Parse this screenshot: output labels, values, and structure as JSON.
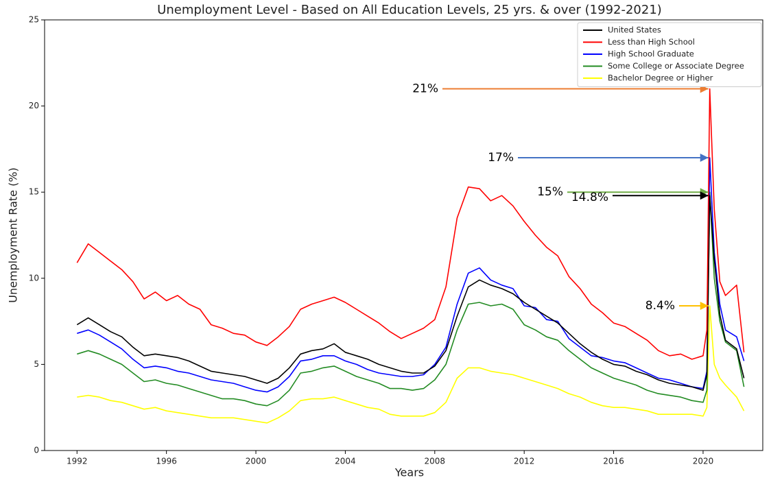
{
  "chart_data": {
    "type": "line",
    "title": "Unemployment Level - Based on All Education Levels, 25 yrs. & over (1992-2021)",
    "xlabel": "Years",
    "ylabel": "Unemployment Rate (%)",
    "x": [
      1992,
      1992.5,
      1993,
      1993.5,
      1994,
      1994.5,
      1995,
      1995.5,
      1996,
      1996.5,
      1997,
      1997.5,
      1998,
      1998.5,
      1999,
      1999.5,
      2000,
      2000.5,
      2001,
      2001.5,
      2002,
      2002.5,
      2003,
      2003.5,
      2004,
      2004.5,
      2005,
      2005.5,
      2006,
      2006.5,
      2007,
      2007.5,
      2008,
      2008.5,
      2009,
      2009.5,
      2010,
      2010.5,
      2011,
      2011.5,
      2012,
      2012.5,
      2013,
      2013.5,
      2014,
      2014.5,
      2015,
      2015.5,
      2016,
      2016.5,
      2017,
      2017.5,
      2018,
      2018.5,
      2019,
      2019.5,
      2020,
      2020.17,
      2020.3,
      2020.5,
      2020.75,
      2021,
      2021.5,
      2021.83
    ],
    "series": [
      {
        "name": "United States",
        "color": "#000000",
        "values": [
          7.3,
          7.7,
          7.3,
          6.9,
          6.6,
          6.0,
          5.5,
          5.6,
          5.5,
          5.4,
          5.2,
          4.9,
          4.6,
          4.5,
          4.4,
          4.3,
          4.1,
          3.9,
          4.2,
          4.8,
          5.6,
          5.8,
          5.9,
          6.2,
          5.7,
          5.5,
          5.3,
          5.0,
          4.8,
          4.6,
          4.5,
          4.5,
          4.9,
          5.8,
          7.8,
          9.5,
          9.9,
          9.6,
          9.4,
          9.1,
          8.6,
          8.2,
          7.8,
          7.4,
          6.8,
          6.2,
          5.7,
          5.3,
          5.0,
          4.9,
          4.6,
          4.4,
          4.1,
          3.9,
          3.8,
          3.7,
          3.5,
          4.4,
          14.8,
          11.1,
          7.9,
          6.4,
          5.9,
          4.2
        ]
      },
      {
        "name": "Less than High School",
        "color": "#ff0000",
        "values": [
          10.9,
          12.0,
          11.5,
          11.0,
          10.5,
          9.8,
          8.8,
          9.2,
          8.7,
          9.0,
          8.5,
          8.2,
          7.3,
          7.1,
          6.8,
          6.7,
          6.3,
          6.1,
          6.6,
          7.2,
          8.2,
          8.5,
          8.7,
          8.9,
          8.6,
          8.2,
          7.8,
          7.4,
          6.9,
          6.5,
          6.8,
          7.1,
          7.6,
          9.5,
          13.5,
          15.3,
          15.2,
          14.5,
          14.8,
          14.2,
          13.3,
          12.5,
          11.8,
          11.3,
          10.1,
          9.4,
          8.5,
          8.0,
          7.4,
          7.2,
          6.8,
          6.4,
          5.8,
          5.5,
          5.6,
          5.3,
          5.5,
          7.0,
          21,
          14.0,
          9.8,
          9.0,
          9.6,
          5.7
        ]
      },
      {
        "name": "High School Graduate",
        "color": "#0000ff",
        "values": [
          6.8,
          7.0,
          6.7,
          6.3,
          5.9,
          5.3,
          4.8,
          4.9,
          4.8,
          4.6,
          4.5,
          4.3,
          4.1,
          4.0,
          3.9,
          3.7,
          3.5,
          3.4,
          3.7,
          4.3,
          5.2,
          5.3,
          5.5,
          5.5,
          5.2,
          5.0,
          4.7,
          4.5,
          4.4,
          4.3,
          4.3,
          4.4,
          5.0,
          6.0,
          8.5,
          10.3,
          10.6,
          9.9,
          9.6,
          9.4,
          8.4,
          8.3,
          7.6,
          7.5,
          6.5,
          6.0,
          5.5,
          5.4,
          5.2,
          5.1,
          4.8,
          4.5,
          4.2,
          4.1,
          3.9,
          3.7,
          3.6,
          4.6,
          17.0,
          11.5,
          8.5,
          7.0,
          6.6,
          5.2
        ]
      },
      {
        "name": "Some College or Associate Degree",
        "color": "#228b22",
        "values": [
          5.6,
          5.8,
          5.6,
          5.3,
          5.0,
          4.5,
          4.0,
          4.1,
          3.9,
          3.8,
          3.6,
          3.4,
          3.2,
          3.0,
          3.0,
          2.9,
          2.7,
          2.6,
          2.9,
          3.5,
          4.5,
          4.6,
          4.8,
          4.9,
          4.6,
          4.3,
          4.1,
          3.9,
          3.6,
          3.6,
          3.5,
          3.6,
          4.1,
          5.0,
          7.0,
          8.5,
          8.6,
          8.4,
          8.5,
          8.2,
          7.3,
          7.0,
          6.6,
          6.4,
          5.8,
          5.3,
          4.8,
          4.5,
          4.2,
          4.0,
          3.8,
          3.5,
          3.3,
          3.2,
          3.1,
          2.9,
          2.8,
          3.5,
          15.0,
          10.0,
          7.5,
          6.3,
          5.8,
          3.7
        ]
      },
      {
        "name": "Bachelor Degree or Higher",
        "color": "#ffff00",
        "values": [
          3.1,
          3.2,
          3.1,
          2.9,
          2.8,
          2.6,
          2.4,
          2.5,
          2.3,
          2.2,
          2.1,
          2.0,
          1.9,
          1.9,
          1.9,
          1.8,
          1.7,
          1.6,
          1.9,
          2.3,
          2.9,
          3.0,
          3.0,
          3.1,
          2.9,
          2.7,
          2.5,
          2.4,
          2.1,
          2.0,
          2.0,
          2.0,
          2.2,
          2.8,
          4.2,
          4.8,
          4.8,
          4.6,
          4.5,
          4.4,
          4.2,
          4.0,
          3.8,
          3.6,
          3.3,
          3.1,
          2.8,
          2.6,
          2.5,
          2.5,
          2.4,
          2.3,
          2.1,
          2.1,
          2.1,
          2.1,
          2.0,
          2.5,
          8.4,
          5.0,
          4.2,
          3.8,
          3.1,
          2.3
        ]
      }
    ],
    "annotations": [
      {
        "text": "21%",
        "value": 21,
        "x": 2020.3,
        "color": "#ed7d31"
      },
      {
        "text": "17%",
        "value": 17,
        "x": 2020.3,
        "color": "#4472c4"
      },
      {
        "text": "15%",
        "value": 15,
        "x": 2020.3,
        "color": "#70ad47"
      },
      {
        "text": "14.8%",
        "value": 14.8,
        "x": 2020.3,
        "color": "#000000"
      },
      {
        "text": "8.4%",
        "value": 8.4,
        "x": 2020.3,
        "color": "#ffc000"
      }
    ],
    "xlim": [
      1990.55,
      2022.67
    ],
    "ylim": [
      0,
      25
    ],
    "xticks": [
      1992,
      1996,
      2000,
      2004,
      2008,
      2012,
      2016,
      2020
    ],
    "yticks": [
      0,
      5,
      10,
      15,
      20,
      25
    ],
    "legend": "upper right"
  }
}
